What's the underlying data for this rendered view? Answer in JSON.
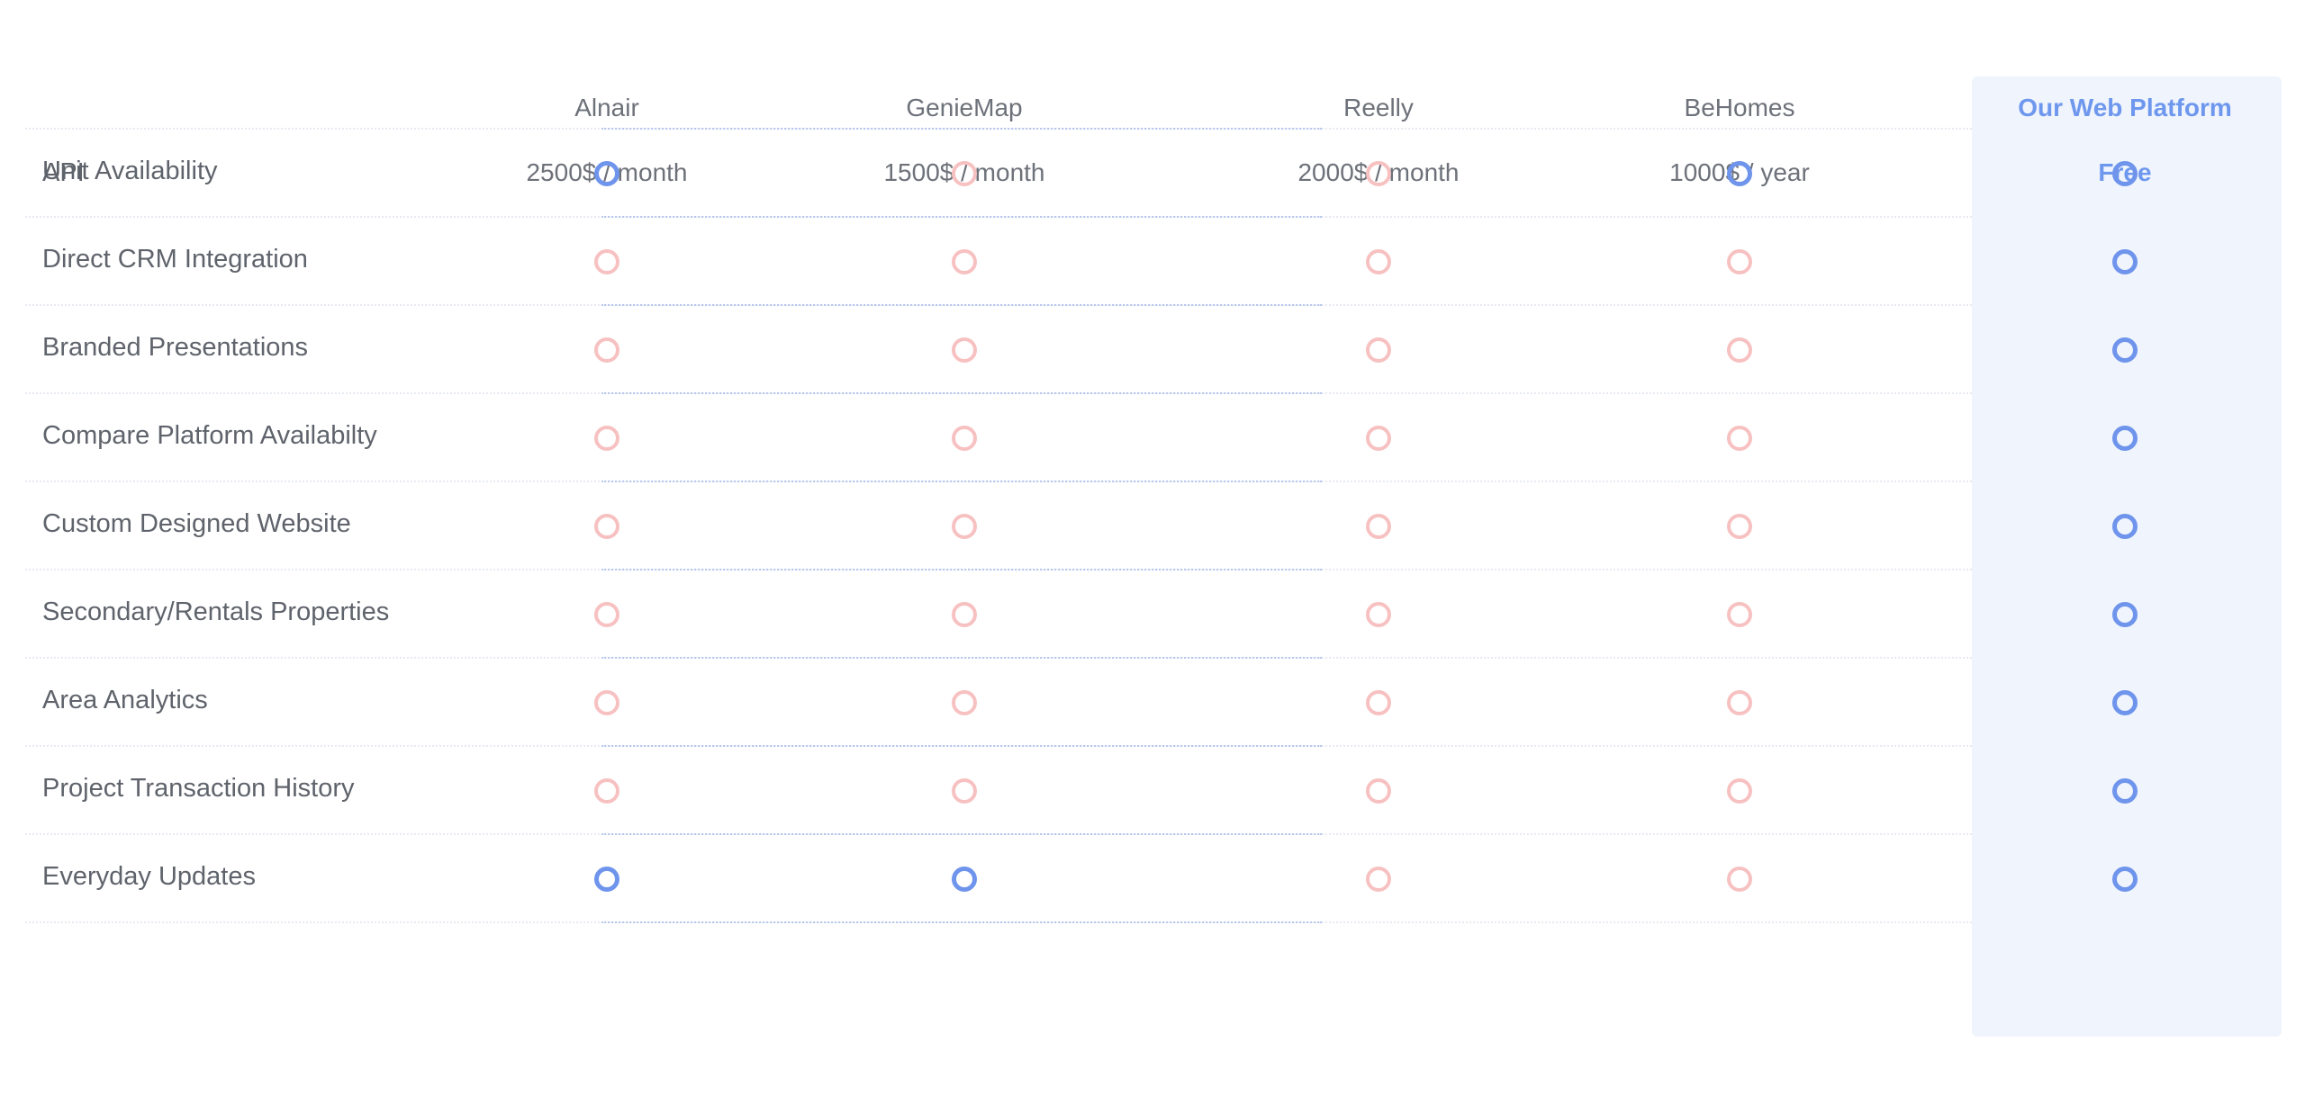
{
  "api_label": "API",
  "columns": [
    {
      "name": "Alnair",
      "price": "2500$ / month",
      "highlight": false
    },
    {
      "name": "GenieMap",
      "price": "1500$ / month",
      "highlight": false
    },
    {
      "name": "Reelly",
      "price": "2000$ / month",
      "highlight": false
    },
    {
      "name": "BeHomes",
      "price": "1000$ / year",
      "highlight": false
    },
    {
      "name": "Our Web Platform",
      "price": "Free",
      "highlight": true
    }
  ],
  "features": [
    {
      "label": "Unit Availability",
      "values": [
        true,
        false,
        false,
        true,
        true
      ]
    },
    {
      "label": "Direct CRM Integration",
      "values": [
        false,
        false,
        false,
        false,
        true
      ]
    },
    {
      "label": "Branded Presentations",
      "values": [
        false,
        false,
        false,
        false,
        true
      ]
    },
    {
      "label": "Compare Platform Availabilty",
      "values": [
        false,
        false,
        false,
        false,
        true
      ]
    },
    {
      "label": "Custom Designed Website",
      "values": [
        false,
        false,
        false,
        false,
        true
      ]
    },
    {
      "label": "Secondary/Rentals Properties",
      "values": [
        false,
        false,
        false,
        false,
        true
      ]
    },
    {
      "label": "Area Analytics",
      "values": [
        false,
        false,
        false,
        false,
        true
      ]
    },
    {
      "label": "Project Transaction History",
      "values": [
        false,
        false,
        false,
        false,
        true
      ]
    },
    {
      "label": "Everyday Updates",
      "values": [
        true,
        true,
        false,
        false,
        true
      ]
    }
  ],
  "colors": {
    "included": "#6f94ec",
    "excluded": "#f7c1c1",
    "highlight_bg": "#eff4fd"
  }
}
